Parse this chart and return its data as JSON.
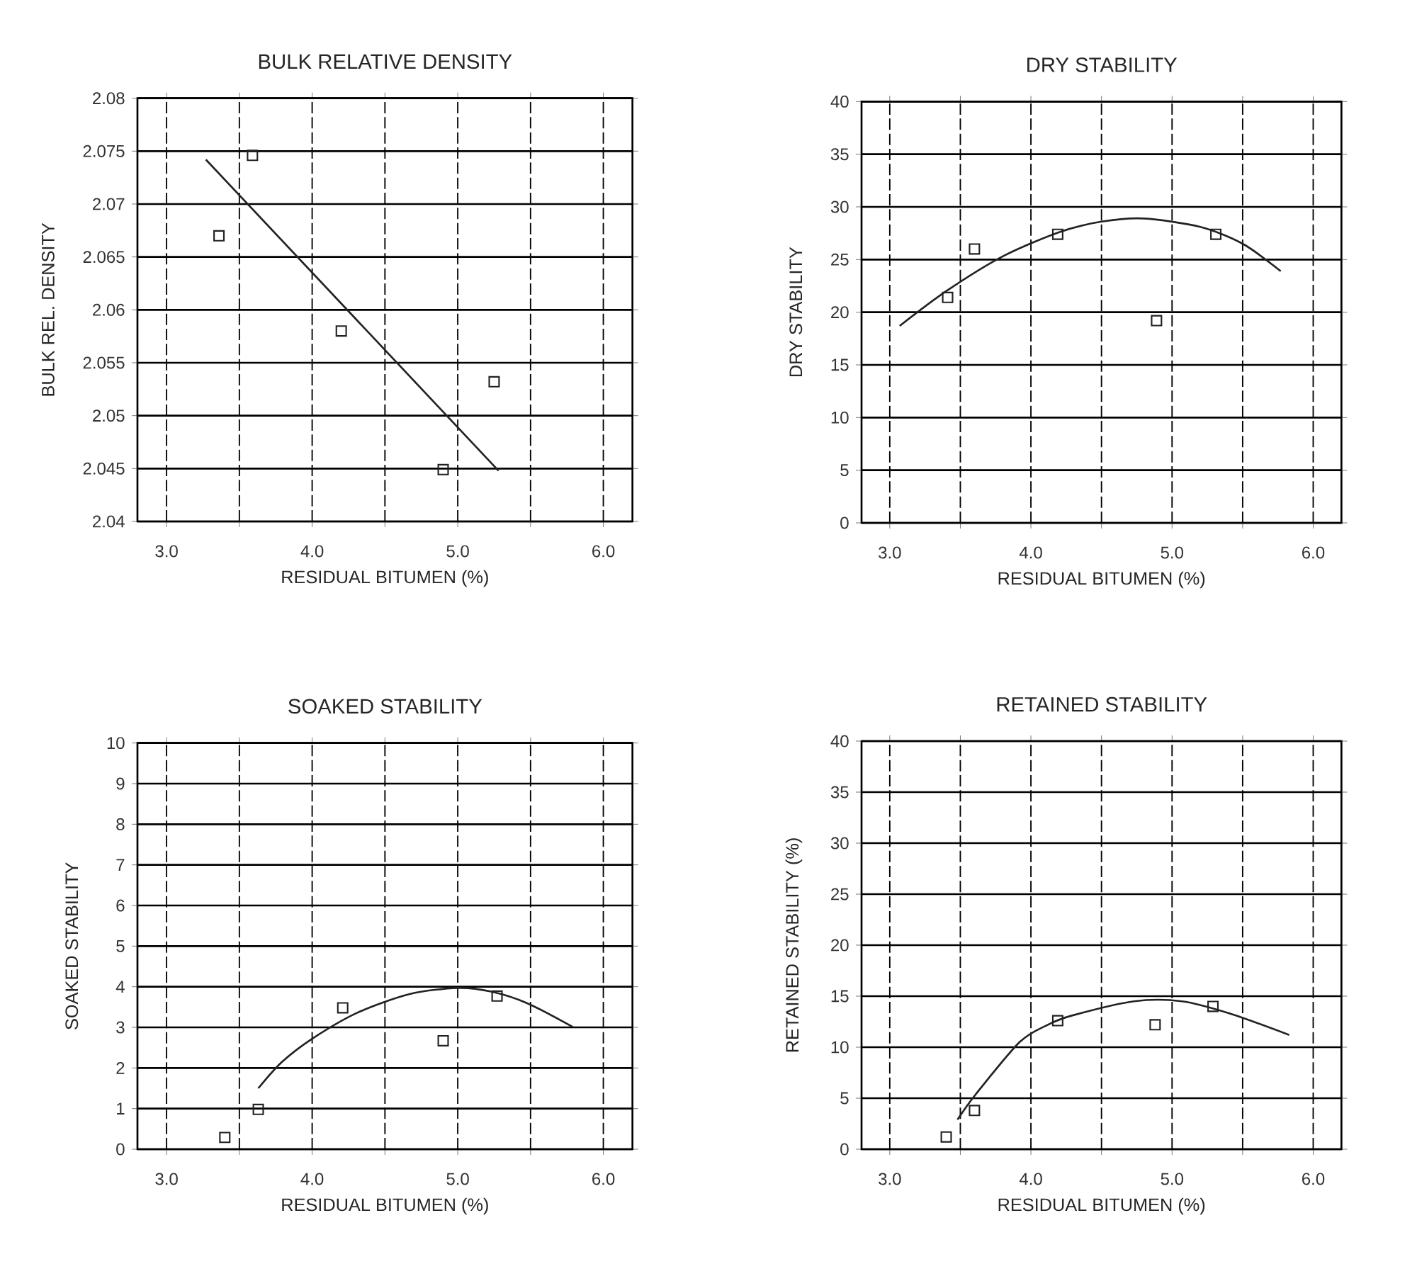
{
  "chart_data": [
    {
      "type": "scatter",
      "title": "BULK RELATIVE DENSITY",
      "xlabel": "RESIDUAL BITUMEN (%)",
      "ylabel": "BULK REL. DENSITY",
      "xlim": [
        2.8,
        6.2
      ],
      "ylim": [
        2.04,
        2.08
      ],
      "xticks": [
        {
          "value": 3,
          "label": "3.0"
        },
        {
          "value": 3.5,
          "label": null
        },
        {
          "value": 4,
          "label": "4.0"
        },
        {
          "value": 4.5,
          "label": null
        },
        {
          "value": 5,
          "label": "5.0"
        },
        {
          "value": 5.5,
          "label": null
        },
        {
          "value": 6,
          "label": "6.0"
        }
      ],
      "yticks": [
        2.04,
        2.045,
        2.05,
        2.055,
        2.06,
        2.065,
        2.07,
        2.075,
        2.08
      ],
      "grid": true,
      "marker": "square",
      "series": [
        {
          "color": "#222222",
          "x": [
            3.36,
            3.59,
            4.2,
            4.9,
            5.25
          ],
          "values": [
            2.067,
            2.0746,
            2.058,
            2.0449,
            2.0532
          ]
        },
        {
          "type": "line",
          "color": "#222222",
          "marker": "none",
          "x": [
            3.27,
            5.28
          ],
          "values": [
            2.0742,
            2.0448
          ]
        }
      ]
    },
    {
      "type": "scatter",
      "title": "DRY STABILITY",
      "xlabel": "RESIDUAL BITUMEN (%)",
      "ylabel": "DRY STABILITY",
      "xlim": [
        2.8,
        6.2
      ],
      "ylim": [
        0,
        40
      ],
      "xticks": [
        {
          "value": 3,
          "label": "3.0"
        },
        {
          "value": 3.5,
          "label": null
        },
        {
          "value": 4,
          "label": "4.0"
        },
        {
          "value": 4.5,
          "label": null
        },
        {
          "value": 5,
          "label": "5.0"
        },
        {
          "value": 5.5,
          "label": null
        },
        {
          "value": 6,
          "label": "6.0"
        }
      ],
      "yticks": [
        0,
        5,
        10,
        15,
        20,
        25,
        30,
        35,
        40
      ],
      "grid": true,
      "marker": "square",
      "series": [
        {
          "color": "#222222",
          "x": [
            3.41,
            3.6,
            4.19,
            4.89,
            5.31
          ],
          "values": [
            21.4,
            26.0,
            27.4,
            19.2,
            27.4
          ]
        },
        {
          "type": "line",
          "color": "#222222",
          "marker": "none",
          "x": [
            3.07,
            3.4,
            3.8,
            4.2,
            4.5,
            4.8,
            5.2,
            5.5,
            5.77
          ],
          "values": [
            18.7,
            22.0,
            25.3,
            27.6,
            28.6,
            28.9,
            28.1,
            26.5,
            23.9
          ]
        }
      ]
    },
    {
      "type": "scatter",
      "title": "SOAKED STABILITY",
      "xlabel": "RESIDUAL BITUMEN (%)",
      "ylabel": "SOAKED STABILITY",
      "xlim": [
        2.8,
        6.2
      ],
      "ylim": [
        0,
        10
      ],
      "xticks": [
        {
          "value": 3,
          "label": "3.0"
        },
        {
          "value": 3.5,
          "label": null
        },
        {
          "value": 4,
          "label": "4.0"
        },
        {
          "value": 4.5,
          "label": null
        },
        {
          "value": 5,
          "label": "5.0"
        },
        {
          "value": 5.5,
          "label": null
        },
        {
          "value": 6,
          "label": "6.0"
        }
      ],
      "yticks": [
        0,
        1,
        2,
        3,
        4,
        5,
        6,
        7,
        8,
        9,
        10
      ],
      "grid": true,
      "marker": "square",
      "series": [
        {
          "color": "#222222",
          "x": [
            3.4,
            3.63,
            4.21,
            4.9,
            5.27
          ],
          "values": [
            0.29,
            0.98,
            3.48,
            2.67,
            3.77
          ]
        },
        {
          "type": "line",
          "color": "#222222",
          "marker": "none",
          "x": [
            3.63,
            3.79,
            4.0,
            4.31,
            4.67,
            5.0,
            5.23,
            5.48,
            5.79
          ],
          "values": [
            1.5,
            2.14,
            2.72,
            3.36,
            3.82,
            3.97,
            3.88,
            3.59,
            3.01
          ]
        }
      ]
    },
    {
      "type": "scatter",
      "title": "RETAINED STABILITY",
      "xlabel": "RESIDUAL BITUMEN (%)",
      "ylabel": "RETAINED STABILITY (%)",
      "xlim": [
        2.8,
        6.2
      ],
      "ylim": [
        0,
        40
      ],
      "xticks": [
        {
          "value": 3,
          "label": "3.0"
        },
        {
          "value": 3.5,
          "label": null
        },
        {
          "value": 4,
          "label": "4.0"
        },
        {
          "value": 4.5,
          "label": null
        },
        {
          "value": 5,
          "label": "5.0"
        },
        {
          "value": 5.5,
          "label": null
        },
        {
          "value": 6,
          "label": "6.0"
        }
      ],
      "yticks": [
        0,
        5,
        10,
        15,
        20,
        25,
        30,
        35,
        40
      ],
      "grid": true,
      "marker": "square",
      "series": [
        {
          "color": "#222222",
          "x": [
            3.4,
            3.6,
            4.19,
            4.88,
            5.29
          ],
          "values": [
            1.2,
            3.8,
            12.6,
            12.2,
            14.0
          ]
        },
        {
          "type": "line",
          "color": "#222222",
          "marker": "none",
          "x": [
            3.48,
            3.61,
            3.92,
            4.12,
            4.29,
            4.73,
            5.07,
            5.41,
            5.83
          ],
          "values": [
            2.9,
            5.4,
            10.5,
            12.2,
            13.1,
            14.5,
            14.5,
            13.3,
            11.2
          ]
        }
      ]
    }
  ]
}
